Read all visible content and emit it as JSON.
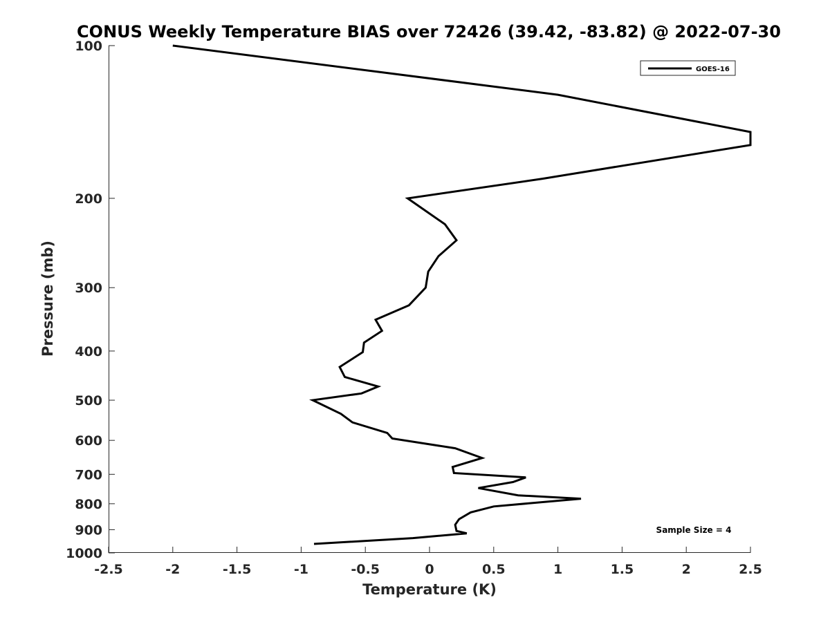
{
  "chart_data": {
    "type": "line",
    "title": "CONUS Weekly Temperature BIAS over 72426 (39.42, -83.82) @ 2022-07-30",
    "xlabel": "Temperature (K)",
    "ylabel": "Pressure (mb)",
    "xlim": [
      -2.5,
      2.5
    ],
    "ylim": [
      1000,
      100
    ],
    "yscale": "log",
    "y_reversed": true,
    "grid": false,
    "legend_position": "top-right",
    "x_ticks": [
      -2.5,
      -2,
      -1.5,
      -1,
      -0.5,
      0,
      0.5,
      1,
      1.5,
      2,
      2.5
    ],
    "x_tick_labels": [
      "-2.5",
      "-2",
      "-1.5",
      "-1",
      "-0.5",
      "0",
      "0.5",
      "1",
      "1.5",
      "2",
      "2.5"
    ],
    "y_ticks": [
      100,
      200,
      300,
      400,
      500,
      600,
      700,
      800,
      900,
      1000
    ],
    "y_tick_labels": [
      "100",
      "200",
      "300",
      "400",
      "500",
      "600",
      "700",
      "800",
      "900",
      "1000"
    ],
    "series": [
      {
        "name": "GOES-16",
        "color": "#000000",
        "x": [
          -2.0,
          1.0,
          2.5,
          2.5,
          0.88,
          -0.17,
          0.12,
          0.21,
          0.07,
          -0.01,
          -0.03,
          -0.16,
          -0.42,
          -0.37,
          -0.51,
          -0.52,
          -0.7,
          -0.66,
          -0.4,
          -0.53,
          -0.91,
          -0.69,
          -0.6,
          -0.33,
          -0.29,
          0.2,
          0.41,
          0.18,
          0.19,
          0.75,
          0.65,
          0.38,
          0.69,
          1.18,
          0.5,
          0.32,
          0.23,
          0.2,
          0.21,
          0.29,
          -0.13,
          -0.9
        ],
        "y": [
          100,
          125,
          148,
          157,
          183,
          200,
          225,
          242,
          260,
          279,
          300,
          325,
          347,
          365,
          385,
          402,
          430,
          450,
          470,
          485,
          500,
          532,
          553,
          580,
          595,
          622,
          650,
          677,
          696,
          710,
          725,
          745,
          770,
          782,
          810,
          832,
          858,
          880,
          905,
          915,
          935,
          960
        ]
      }
    ],
    "annotations": [
      {
        "text": "Sample Size = 4",
        "position": "bottom-right"
      }
    ]
  }
}
